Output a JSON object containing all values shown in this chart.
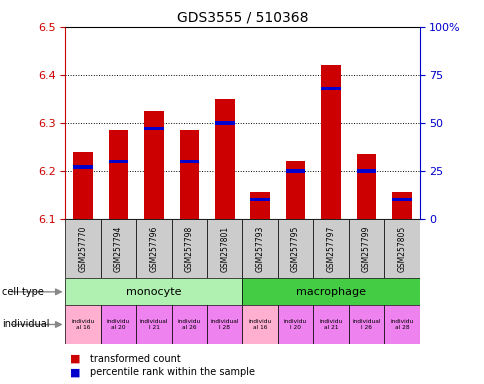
{
  "title": "GDS3555 / 510368",
  "samples": [
    "GSM257770",
    "GSM257794",
    "GSM257796",
    "GSM257798",
    "GSM257801",
    "GSM257793",
    "GSM257795",
    "GSM257797",
    "GSM257799",
    "GSM257805"
  ],
  "transformed_counts": [
    6.24,
    6.285,
    6.325,
    6.285,
    6.35,
    6.155,
    6.22,
    6.42,
    6.235,
    6.155
  ],
  "percentile_ranks": [
    27,
    30,
    47,
    30,
    50,
    10,
    25,
    68,
    25,
    10
  ],
  "ylim_left": [
    6.1,
    6.5
  ],
  "ylim_right": [
    0,
    100
  ],
  "yticks_left": [
    6.1,
    6.2,
    6.3,
    6.4,
    6.5
  ],
  "yticks_right": [
    0,
    25,
    50,
    75,
    100
  ],
  "cell_types": [
    {
      "label": "monocyte",
      "start": 0,
      "end": 5,
      "color": "#aeeaae"
    },
    {
      "label": "macrophage",
      "start": 5,
      "end": 10,
      "color": "#33cc55"
    }
  ],
  "indiv_colors": [
    "#ffb0d0",
    "#ee82ee",
    "#ee82ee",
    "#ee82ee",
    "#ee82ee",
    "#ffb0d0",
    "#ee82ee",
    "#ee82ee",
    "#ee82ee",
    "#ee82ee"
  ],
  "indiv_texts": [
    "individu\nal 16",
    "individu\nal 20",
    "individual\nl 21",
    "individu\nal 26",
    "individual\nl 28",
    "individu\nal 16",
    "individu\nl 20",
    "individu\nal 21",
    "individual\nl 26",
    "individu\nal 28"
  ],
  "bar_color": "#cc0000",
  "percentile_color": "#0000cc",
  "baseline": 6.1,
  "left_axis_color": "#cc0000",
  "right_axis_color": "#0000cc",
  "sample_box_color": "#cccccc",
  "monocyte_color": "#b0f0b0",
  "macrophage_color": "#44cc44"
}
